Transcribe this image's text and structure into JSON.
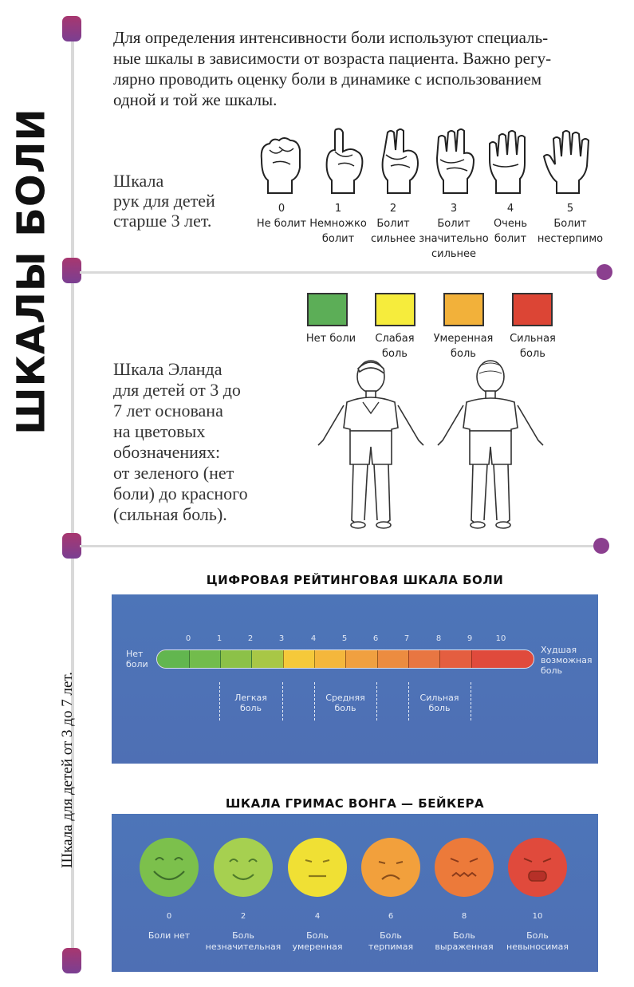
{
  "title": "ШКАЛЫ БОЛИ",
  "side_note": "Шкала для детей от 3 до 7 лет.",
  "intro": [
    "Для определения интенсивности боли используют специаль-",
    "ные шкалы в зависимости от возраста пациента. Важно регу-",
    "лярно проводить оценку боли в динамике с использованием",
    "одной и той же шкалы."
  ],
  "hands_scale": {
    "label": [
      "Шкала",
      "рук для детей",
      "старше 3 лет."
    ],
    "items": [
      {
        "value": "0",
        "caption": [
          "Не болит"
        ]
      },
      {
        "value": "1",
        "caption": [
          "Немножко",
          "болит"
        ]
      },
      {
        "value": "2",
        "caption": [
          "Болит",
          "сильнее"
        ]
      },
      {
        "value": "3",
        "caption": [
          "Болит",
          "значительно",
          "сильнее"
        ]
      },
      {
        "value": "4",
        "caption": [
          "Очень",
          "болит"
        ]
      },
      {
        "value": "5",
        "caption": [
          "Болит",
          "нестерпимо"
        ]
      }
    ]
  },
  "eland_scale": {
    "label": [
      "Шкала Эланда",
      "для детей от 3 до",
      "7 лет основана",
      "на цветовых",
      "обозначениях:",
      "от зеленого (нет",
      "боли) до красного",
      "(сильная боль)."
    ],
    "colors": [
      {
        "color": "#5cae57",
        "caption": [
          "Нет боли"
        ]
      },
      {
        "color": "#f6ec3c",
        "caption": [
          "Слабая",
          "боль"
        ]
      },
      {
        "color": "#f2b13a",
        "caption": [
          "Умеренная",
          "боль"
        ]
      },
      {
        "color": "#dc4535",
        "caption": [
          "Сильная",
          "боль"
        ]
      }
    ]
  },
  "numeric_scale": {
    "title": "ЦИФРОВАЯ РЕЙТИНГОВАЯ ШКАЛА БОЛИ",
    "numbers": [
      "0",
      "1",
      "2",
      "3",
      "4",
      "5",
      "6",
      "7",
      "8",
      "9",
      "10"
    ],
    "left_label": [
      "Нет",
      "боли"
    ],
    "right_label": [
      "Худшая",
      "возможная",
      "боль"
    ],
    "segment_colors": [
      "#62b64f",
      "#72bc4c",
      "#8cc148",
      "#a8c746",
      "#f5c93a",
      "#f4b73c",
      "#f0a040",
      "#ec8c40",
      "#e87642",
      "#e45e40"
    ],
    "groups": [
      {
        "caption": [
          "Легкая",
          "боль"
        ]
      },
      {
        "caption": [
          "Средняя",
          "боль"
        ]
      },
      {
        "caption": [
          "Сильная",
          "боль"
        ]
      }
    ]
  },
  "faces_scale": {
    "title": "ШКАЛА ГРИМАС ВОНГА — БЕЙКЕРА",
    "faces": [
      {
        "value": "0",
        "caption": [
          "Боли нет"
        ],
        "color": "#7cc04c"
      },
      {
        "value": "2",
        "caption": [
          "Боль",
          "незначительная"
        ],
        "color": "#a6d050"
      },
      {
        "value": "4",
        "caption": [
          "Боль",
          "умеренная"
        ],
        "color": "#f0e034"
      },
      {
        "value": "6",
        "caption": [
          "Боль",
          "терпимая"
        ],
        "color": "#f2a03c"
      },
      {
        "value": "8",
        "caption": [
          "Боль",
          "выраженная"
        ],
        "color": "#ec7a3a"
      },
      {
        "value": "10",
        "caption": [
          "Боль",
          "невыносимая"
        ],
        "color": "#e04a3c"
      }
    ]
  }
}
